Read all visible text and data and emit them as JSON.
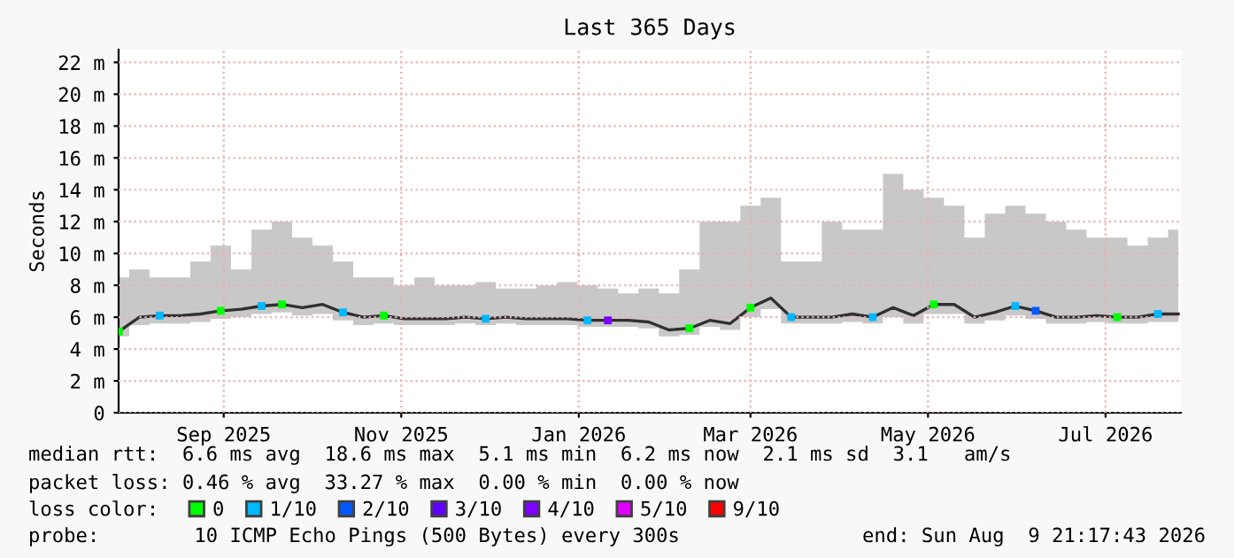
{
  "chart_data": {
    "type": "line",
    "title": "Last 365 Days",
    "ylabel": "Seconds",
    "x": [
      "2025-08-10",
      "2025-08-17",
      "2025-08-24",
      "2025-08-31",
      "2025-09-07",
      "2025-09-14",
      "2025-09-21",
      "2025-09-28",
      "2025-10-05",
      "2025-10-12",
      "2025-10-19",
      "2025-10-26",
      "2025-11-02",
      "2025-11-09",
      "2025-11-16",
      "2025-11-23",
      "2025-11-30",
      "2025-12-07",
      "2025-12-14",
      "2025-12-21",
      "2025-12-28",
      "2026-01-04",
      "2026-01-11",
      "2026-01-18",
      "2026-01-25",
      "2026-02-01",
      "2026-02-08",
      "2026-02-15",
      "2026-02-22",
      "2026-03-01",
      "2026-03-08",
      "2026-03-15",
      "2026-03-22",
      "2026-03-29",
      "2026-04-05",
      "2026-04-12",
      "2026-04-19",
      "2026-04-26",
      "2026-05-03",
      "2026-05-10",
      "2026-05-17",
      "2026-05-24",
      "2026-05-31",
      "2026-06-07",
      "2026-06-14",
      "2026-06-21",
      "2026-06-28",
      "2026-07-05",
      "2026-07-12",
      "2026-07-19",
      "2026-07-26",
      "2026-08-02",
      "2026-08-09"
    ],
    "series": [
      {
        "color": "#303030",
        "values": [
          5.1,
          6.0,
          6.1,
          6.1,
          6.2,
          6.4,
          6.5,
          6.7,
          6.8,
          6.6,
          6.8,
          6.3,
          6.0,
          6.1,
          5.9,
          5.9,
          5.9,
          6.0,
          5.9,
          6.0,
          5.9,
          5.9,
          5.9,
          5.8,
          5.8,
          5.8,
          5.7,
          5.2,
          5.3,
          5.8,
          5.6,
          6.6,
          7.2,
          6.0,
          6.0,
          6.0,
          6.2,
          6.0,
          6.6,
          6.1,
          6.8,
          6.8,
          6.0,
          6.3,
          6.7,
          6.4,
          6.0,
          6.0,
          6.1,
          6.0,
          6.0,
          6.2,
          6.2
        ],
        "lower": [
          4.8,
          5.5,
          5.6,
          5.6,
          5.7,
          5.9,
          6.0,
          6.2,
          6.3,
          6.1,
          6.2,
          5.8,
          5.5,
          5.6,
          5.5,
          5.5,
          5.5,
          5.6,
          5.5,
          5.6,
          5.5,
          5.5,
          5.5,
          5.4,
          5.4,
          5.4,
          5.3,
          4.8,
          4.9,
          5.4,
          5.2,
          6.0,
          6.5,
          5.6,
          5.6,
          5.6,
          5.7,
          5.6,
          6.0,
          5.6,
          6.2,
          6.2,
          5.6,
          5.8,
          6.1,
          5.9,
          5.6,
          5.6,
          5.7,
          5.6,
          5.6,
          5.7,
          5.7
        ],
        "upper": [
          8.5,
          9.0,
          8.5,
          8.5,
          9.5,
          10.5,
          9.0,
          11.5,
          12.0,
          11.0,
          10.5,
          9.5,
          8.5,
          8.5,
          8.0,
          8.5,
          8.0,
          8.0,
          8.2,
          7.8,
          7.8,
          8.0,
          8.2,
          8.0,
          7.8,
          7.5,
          7.8,
          7.5,
          9.0,
          12.0,
          12.0,
          13.0,
          13.5,
          9.5,
          9.5,
          12.0,
          11.5,
          11.5,
          15.0,
          14.0,
          13.5,
          13.0,
          11.0,
          12.5,
          13.0,
          12.5,
          12.0,
          11.5,
          11.0,
          11.0,
          10.5,
          11.0,
          11.5
        ]
      },
      {
        "type": "scatter",
        "marker": "square",
        "name": "0",
        "color": "#00ff00",
        "x": [
          "2025-08-10",
          "2025-09-14",
          "2025-10-05",
          "2025-11-09",
          "2026-02-22",
          "2026-03-15",
          "2026-05-17",
          "2026-07-19"
        ],
        "values": [
          5.1,
          6.4,
          6.8,
          6.1,
          5.3,
          6.6,
          6.8,
          6.0
        ]
      },
      {
        "type": "scatter",
        "marker": "square",
        "name": "1/10",
        "color": "#00b8ff",
        "x": [
          "2025-08-24",
          "2025-09-28",
          "2025-10-26",
          "2025-12-14",
          "2026-01-18",
          "2026-03-29",
          "2026-04-26",
          "2026-06-14",
          "2026-08-02"
        ],
        "values": [
          6.1,
          6.7,
          6.3,
          5.9,
          5.8,
          6.0,
          6.0,
          6.7,
          6.2
        ]
      },
      {
        "type": "scatter",
        "marker": "square",
        "name": "2/10",
        "color": "#0059ff",
        "x": [
          "2026-06-21"
        ],
        "values": [
          6.4
        ]
      },
      {
        "type": "scatter",
        "marker": "square",
        "name": "3/10",
        "color": "#5e00ff",
        "values": [
          null,
          null,
          null,
          null,
          null,
          null,
          null,
          null,
          null,
          null,
          null,
          null,
          null,
          null,
          null,
          null,
          null,
          null,
          null,
          null,
          null,
          null,
          null,
          null,
          null,
          null,
          null,
          null,
          null,
          null,
          null,
          null,
          null,
          null,
          null,
          null,
          null,
          null,
          null,
          null,
          null,
          null,
          null,
          null,
          null,
          null,
          null,
          null,
          null,
          null,
          null,
          null,
          null
        ]
      },
      {
        "type": "scatter",
        "marker": "square",
        "name": "4/10",
        "color": "#7e00ff",
        "x": [
          "2026-01-25"
        ],
        "values": [
          5.8
        ]
      },
      {
        "type": "scatter",
        "marker": "square",
        "name": "5/10",
        "color": "#dd00ff",
        "values": [
          null,
          null,
          null,
          null,
          null,
          null,
          null,
          null,
          null,
          null,
          null,
          null,
          null,
          null,
          null,
          null,
          null,
          null,
          null,
          null,
          null,
          null,
          null,
          null,
          null,
          null,
          null,
          null,
          null,
          null,
          null,
          null,
          null,
          null,
          null,
          null,
          null,
          null,
          null,
          null,
          null,
          null,
          null,
          null,
          null,
          null,
          null,
          null,
          null,
          null,
          null,
          null,
          null
        ]
      },
      {
        "type": "scatter",
        "marker": "square",
        "name": "9/10",
        "color": "#ff0000",
        "values": [
          null,
          null,
          null,
          null,
          null,
          null,
          null,
          null,
          null,
          null,
          null,
          null,
          null,
          null,
          null,
          null,
          null,
          null,
          null,
          null,
          null,
          null,
          null,
          null,
          null,
          null,
          null,
          null,
          null,
          null,
          null,
          null,
          null,
          null,
          null,
          null,
          null,
          null,
          null,
          null,
          null,
          null,
          null,
          null,
          null,
          null,
          null,
          null,
          null,
          null,
          null,
          null,
          null
        ]
      }
    ],
    "xlim": [
      "2025-08-09T21:17",
      "2026-08-09T21:17"
    ],
    "xticks": [
      {
        "value": "2025-09-15",
        "label": "Sep 2025"
      },
      {
        "value": "2025-11-15",
        "label": "Nov 2025"
      },
      {
        "value": "2026-01-15",
        "label": "Jan 2026"
      },
      {
        "value": "2026-03-15",
        "label": "Mar 2026"
      },
      {
        "value": "2026-05-15",
        "label": "May 2026"
      },
      {
        "value": "2026-07-15",
        "label": "Jul 2026"
      }
    ],
    "ylim": [
      0,
      22.8
    ],
    "yticks": [
      0,
      {
        "value": 2,
        "label": "2 m"
      },
      {
        "value": 4,
        "label": "4 m"
      },
      {
        "value": 6,
        "label": "6 m"
      },
      {
        "value": 8,
        "label": "8 m"
      },
      {
        "value": 10,
        "label": "10 m"
      },
      {
        "value": 12,
        "label": "12 m"
      },
      {
        "value": 14,
        "label": "14 m"
      },
      {
        "value": 16,
        "label": "16 m"
      },
      {
        "value": 18,
        "label": "18 m"
      },
      {
        "value": 20,
        "label": "20 m"
      },
      {
        "value": 22,
        "label": "22 m"
      }
    ],
    "grid": true,
    "legend": "bottom",
    "legend_title": "loss color:",
    "annotations": [
      "median rtt:  6.6 ms avg  18.6 ms max  5.1 ms min  6.2 ms now  2.1 ms sd  3.1   am/s",
      "packet loss: 0.46 % avg  33.27 % max  0.00 % min  0.00 % now",
      "probe:        10 ICMP Echo Pings (500 Bytes) every 300s",
      "end: Sun Aug  9 21:17:43 2026"
    ]
  }
}
